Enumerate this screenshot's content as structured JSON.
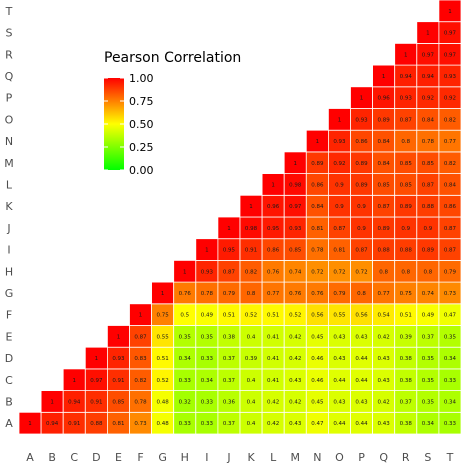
{
  "chart_data": {
    "type": "heatmap",
    "x_categories": [
      "A",
      "B",
      "C",
      "D",
      "E",
      "F",
      "G",
      "H",
      "I",
      "J",
      "K",
      "L",
      "M",
      "N",
      "O",
      "P",
      "Q",
      "R",
      "S",
      "T"
    ],
    "y_categories": [
      "A",
      "B",
      "C",
      "D",
      "E",
      "F",
      "G",
      "H",
      "I",
      "J",
      "K",
      "L",
      "M",
      "N",
      "O",
      "P",
      "Q",
      "R",
      "S",
      "T"
    ],
    "rows": [
      [
        1,
        0.94,
        0.91,
        0.88,
        0.81,
        0.73,
        0.48,
        0.33,
        0.33,
        0.37,
        0.4,
        0.42,
        0.43,
        0.47,
        0.44,
        0.44,
        0.43,
        0.38,
        0.34,
        0.33
      ],
      [
        null,
        1,
        0.94,
        0.91,
        0.85,
        0.78,
        0.48,
        0.32,
        0.33,
        0.36,
        0.4,
        0.42,
        0.42,
        0.45,
        0.43,
        0.43,
        0.42,
        0.37,
        0.35,
        0.34
      ],
      [
        null,
        null,
        1,
        0.97,
        0.91,
        0.82,
        0.52,
        0.33,
        0.34,
        0.37,
        0.4,
        0.41,
        0.43,
        0.46,
        0.44,
        0.44,
        0.43,
        0.38,
        0.35,
        0.33
      ],
      [
        null,
        null,
        null,
        1,
        0.93,
        0.83,
        0.51,
        0.34,
        0.33,
        0.37,
        0.39,
        0.41,
        0.42,
        0.46,
        0.43,
        0.44,
        0.43,
        0.38,
        0.35,
        0.34
      ],
      [
        null,
        null,
        null,
        null,
        1,
        0.87,
        0.55,
        0.35,
        0.35,
        0.38,
        0.4,
        0.41,
        0.42,
        0.45,
        0.43,
        0.43,
        0.42,
        0.39,
        0.37,
        0.35
      ],
      [
        null,
        null,
        null,
        null,
        null,
        1,
        0.75,
        0.5,
        0.49,
        0.51,
        0.52,
        0.51,
        0.52,
        0.56,
        0.55,
        0.56,
        0.54,
        0.51,
        0.49,
        0.47
      ],
      [
        null,
        null,
        null,
        null,
        null,
        null,
        1,
        0.76,
        0.78,
        0.79,
        0.8,
        0.77,
        0.76,
        0.76,
        0.79,
        0.8,
        0.77,
        0.75,
        0.74,
        0.73
      ],
      [
        null,
        null,
        null,
        null,
        null,
        null,
        null,
        1,
        0.93,
        0.87,
        0.82,
        0.76,
        0.74,
        0.72,
        0.72,
        0.72,
        0.8,
        0.8,
        0.8,
        0.79
      ],
      [
        null,
        null,
        null,
        null,
        null,
        null,
        null,
        null,
        1,
        0.95,
        0.91,
        0.86,
        0.85,
        0.78,
        0.81,
        0.87,
        0.88,
        0.88,
        0.89,
        0.87
      ],
      [
        null,
        null,
        null,
        null,
        null,
        null,
        null,
        null,
        null,
        1,
        0.98,
        0.95,
        0.93,
        0.81,
        0.87,
        0.9,
        0.89,
        0.9,
        0.9,
        0.87
      ],
      [
        null,
        null,
        null,
        null,
        null,
        null,
        null,
        null,
        null,
        null,
        1,
        0.96,
        0.97,
        0.84,
        0.9,
        0.9,
        0.87,
        0.89,
        0.88,
        0.86
      ],
      [
        null,
        null,
        null,
        null,
        null,
        null,
        null,
        null,
        null,
        null,
        null,
        1,
        0.98,
        0.86,
        0.9,
        0.89,
        0.85,
        0.85,
        0.87,
        0.84
      ],
      [
        null,
        null,
        null,
        null,
        null,
        null,
        null,
        null,
        null,
        null,
        null,
        null,
        1,
        0.89,
        0.92,
        0.89,
        0.84,
        0.85,
        0.85,
        0.82
      ],
      [
        null,
        null,
        null,
        null,
        null,
        null,
        null,
        null,
        null,
        null,
        null,
        null,
        null,
        1,
        0.93,
        0.86,
        0.84,
        0.8,
        0.78,
        0.77
      ],
      [
        null,
        null,
        null,
        null,
        null,
        null,
        null,
        null,
        null,
        null,
        null,
        null,
        null,
        null,
        1,
        0.93,
        0.89,
        0.87,
        0.84,
        0.82
      ],
      [
        null,
        null,
        null,
        null,
        null,
        null,
        null,
        null,
        null,
        null,
        null,
        null,
        null,
        null,
        null,
        1,
        0.96,
        0.93,
        0.92,
        0.92
      ],
      [
        null,
        null,
        null,
        null,
        null,
        null,
        null,
        null,
        null,
        null,
        null,
        null,
        null,
        null,
        null,
        null,
        1,
        0.94,
        0.94,
        0.93
      ],
      [
        null,
        null,
        null,
        null,
        null,
        null,
        null,
        null,
        null,
        null,
        null,
        null,
        null,
        null,
        null,
        null,
        null,
        1,
        0.97,
        0.97
      ],
      [
        null,
        null,
        null,
        null,
        null,
        null,
        null,
        null,
        null,
        null,
        null,
        null,
        null,
        null,
        null,
        null,
        null,
        null,
        1,
        0.97
      ],
      [
        null,
        null,
        null,
        null,
        null,
        null,
        null,
        null,
        null,
        null,
        null,
        null,
        null,
        null,
        null,
        null,
        null,
        null,
        null,
        1
      ]
    ],
    "legend": {
      "title": "Pearson Correlation",
      "ticks": [
        "1.00",
        "0.75",
        "0.50",
        "0.25",
        "0.00"
      ],
      "range": [
        0,
        1
      ],
      "placement": "top-left"
    },
    "color_scale": {
      "low": "#00ff00",
      "mid": "#ffff00",
      "high": "#ff0000"
    },
    "grid": false
  }
}
